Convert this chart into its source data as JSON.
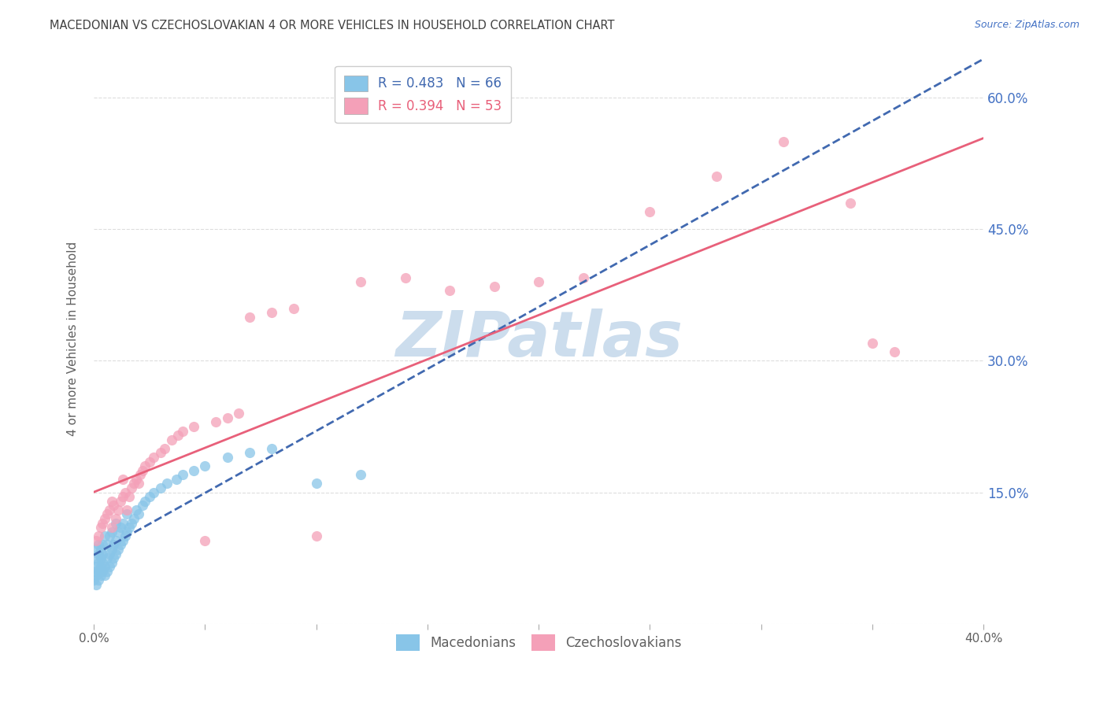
{
  "title": "MACEDONIAN VS CZECHOSLOVAKIAN 4 OR MORE VEHICLES IN HOUSEHOLD CORRELATION CHART",
  "source": "Source: ZipAtlas.com",
  "ylabel": "4 or more Vehicles in Household",
  "xlim": [
    0.0,
    0.4
  ],
  "ylim": [
    0.0,
    0.65
  ],
  "xtick_positions": [
    0.0,
    0.05,
    0.1,
    0.15,
    0.2,
    0.25,
    0.3,
    0.35,
    0.4
  ],
  "xticklabels": [
    "0.0%",
    "",
    "",
    "",
    "",
    "",
    "",
    "",
    "40.0%"
  ],
  "ytick_positions": [
    0.0,
    0.15,
    0.3,
    0.45,
    0.6
  ],
  "yticklabels_right": [
    "",
    "15.0%",
    "30.0%",
    "45.0%",
    "60.0%"
  ],
  "color_macedonian": "#88c5e8",
  "color_czechoslovakian": "#f4a0b8",
  "line_color_macedonian": "#4169b0",
  "line_color_czechoslovakian": "#e8607a",
  "watermark_color": "#ccdded",
  "background_color": "#ffffff",
  "grid_color": "#dddddd",
  "title_color": "#404040",
  "axis_label_color": "#606060",
  "tick_label_color_right": "#4472c4",
  "mac_x": [
    0.0,
    0.0,
    0.001,
    0.001,
    0.001,
    0.001,
    0.001,
    0.002,
    0.002,
    0.002,
    0.002,
    0.002,
    0.003,
    0.003,
    0.003,
    0.003,
    0.004,
    0.004,
    0.004,
    0.004,
    0.005,
    0.005,
    0.005,
    0.006,
    0.006,
    0.006,
    0.007,
    0.007,
    0.007,
    0.008,
    0.008,
    0.008,
    0.009,
    0.009,
    0.01,
    0.01,
    0.01,
    0.011,
    0.011,
    0.012,
    0.012,
    0.013,
    0.013,
    0.014,
    0.015,
    0.015,
    0.016,
    0.017,
    0.018,
    0.019,
    0.02,
    0.022,
    0.023,
    0.025,
    0.027,
    0.03,
    0.033,
    0.037,
    0.04,
    0.045,
    0.05,
    0.06,
    0.07,
    0.08,
    0.1,
    0.12
  ],
  "mac_y": [
    0.05,
    0.06,
    0.045,
    0.055,
    0.065,
    0.075,
    0.085,
    0.05,
    0.06,
    0.07,
    0.08,
    0.09,
    0.055,
    0.065,
    0.075,
    0.085,
    0.06,
    0.07,
    0.08,
    0.09,
    0.055,
    0.065,
    0.1,
    0.06,
    0.075,
    0.09,
    0.065,
    0.08,
    0.1,
    0.07,
    0.085,
    0.105,
    0.075,
    0.09,
    0.08,
    0.095,
    0.115,
    0.085,
    0.105,
    0.09,
    0.11,
    0.095,
    0.115,
    0.1,
    0.105,
    0.125,
    0.11,
    0.115,
    0.12,
    0.13,
    0.125,
    0.135,
    0.14,
    0.145,
    0.15,
    0.155,
    0.16,
    0.165,
    0.17,
    0.175,
    0.18,
    0.19,
    0.195,
    0.2,
    0.16,
    0.17
  ],
  "czech_x": [
    0.001,
    0.002,
    0.003,
    0.004,
    0.005,
    0.006,
    0.007,
    0.008,
    0.008,
    0.009,
    0.01,
    0.011,
    0.012,
    0.013,
    0.013,
    0.014,
    0.015,
    0.016,
    0.017,
    0.018,
    0.019,
    0.02,
    0.021,
    0.022,
    0.023,
    0.025,
    0.027,
    0.03,
    0.032,
    0.035,
    0.038,
    0.04,
    0.045,
    0.05,
    0.055,
    0.06,
    0.065,
    0.07,
    0.08,
    0.09,
    0.1,
    0.12,
    0.14,
    0.16,
    0.18,
    0.2,
    0.22,
    0.25,
    0.28,
    0.31,
    0.34,
    0.35,
    0.36
  ],
  "czech_y": [
    0.095,
    0.1,
    0.11,
    0.115,
    0.12,
    0.125,
    0.13,
    0.11,
    0.14,
    0.135,
    0.12,
    0.13,
    0.14,
    0.145,
    0.165,
    0.15,
    0.13,
    0.145,
    0.155,
    0.16,
    0.165,
    0.16,
    0.17,
    0.175,
    0.18,
    0.185,
    0.19,
    0.195,
    0.2,
    0.21,
    0.215,
    0.22,
    0.225,
    0.095,
    0.23,
    0.235,
    0.24,
    0.35,
    0.355,
    0.36,
    0.1,
    0.39,
    0.395,
    0.38,
    0.385,
    0.39,
    0.395,
    0.47,
    0.51,
    0.55,
    0.48,
    0.32,
    0.31
  ]
}
